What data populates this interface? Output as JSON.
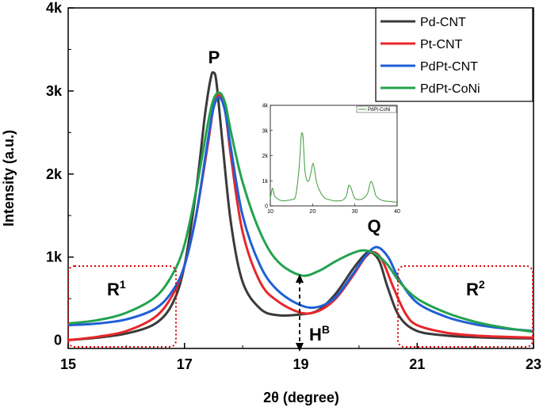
{
  "chart_data": {
    "type": "line",
    "title": "",
    "xlabel": "2θ (degree)",
    "ylabel": "Intensity (a.u.)",
    "xlim": [
      15,
      23
    ],
    "ylim": [
      -100,
      4000
    ],
    "x_ticks": [
      15,
      17,
      19,
      21,
      23
    ],
    "x_tick_labels": [
      "15",
      "17",
      "19",
      "21",
      "23"
    ],
    "y_ticks": [
      0,
      1000,
      2000,
      3000,
      4000
    ],
    "y_tick_labels": [
      "0",
      "1k",
      "2k",
      "3k",
      "4k"
    ],
    "legend_position": "top-right",
    "series": [
      {
        "name": "Pd-CNT",
        "color": "#3a3a3a",
        "x": [
          15.0,
          15.5,
          16.0,
          16.5,
          16.8,
          17.0,
          17.2,
          17.35,
          17.45,
          17.5,
          17.55,
          17.65,
          17.8,
          18.0,
          18.3,
          18.6,
          19.0,
          19.3,
          19.6,
          19.9,
          20.1,
          20.2,
          20.35,
          20.5,
          20.7,
          21.0,
          21.5,
          22.0,
          22.5,
          23.0
        ],
        "y": [
          0,
          30,
          80,
          200,
          450,
          900,
          1800,
          2700,
          3150,
          3220,
          3100,
          2400,
          1400,
          700,
          380,
          300,
          310,
          360,
          560,
          860,
          1030,
          1060,
          950,
          620,
          280,
          110,
          55,
          35,
          25,
          20
        ]
      },
      {
        "name": "Pt-CNT",
        "color": "#e8262a",
        "x": [
          15.0,
          15.5,
          16.0,
          16.5,
          16.8,
          17.0,
          17.2,
          17.4,
          17.5,
          17.6,
          17.7,
          17.8,
          18.0,
          18.3,
          18.6,
          19.0,
          19.3,
          19.6,
          19.9,
          20.1,
          20.25,
          20.4,
          20.6,
          20.8,
          21.0,
          21.5,
          22.0,
          22.5,
          23.0
        ],
        "y": [
          0,
          40,
          110,
          280,
          550,
          900,
          1500,
          2350,
          2800,
          2950,
          2750,
          2200,
          1300,
          700,
          470,
          330,
          350,
          500,
          780,
          990,
          1060,
          960,
          620,
          320,
          180,
          90,
          55,
          40,
          30
        ]
      },
      {
        "name": "PdPt-CNT",
        "color": "#1f5fd6",
        "x": [
          15.0,
          15.5,
          16.0,
          16.5,
          16.8,
          17.0,
          17.2,
          17.4,
          17.5,
          17.6,
          17.7,
          17.8,
          18.0,
          18.3,
          18.6,
          19.0,
          19.3,
          19.6,
          19.9,
          20.1,
          20.3,
          20.5,
          20.7,
          21.0,
          21.5,
          22.0,
          22.5,
          23.0
        ],
        "y": [
          180,
          200,
          250,
          380,
          600,
          900,
          1500,
          2400,
          2800,
          2920,
          2750,
          2300,
          1500,
          900,
          600,
          420,
          400,
          520,
          800,
          1000,
          1120,
          1000,
          720,
          450,
          280,
          190,
          140,
          110
        ]
      },
      {
        "name": "PdPt-CoNi",
        "color": "#23a24d",
        "x": [
          15.0,
          15.5,
          16.0,
          16.5,
          16.8,
          17.0,
          17.2,
          17.4,
          17.5,
          17.6,
          17.7,
          17.8,
          18.0,
          18.3,
          18.6,
          19.0,
          19.3,
          19.6,
          19.9,
          20.1,
          20.3,
          20.5,
          20.7,
          21.0,
          21.5,
          22.0,
          22.5,
          23.0
        ],
        "y": [
          200,
          240,
          330,
          520,
          800,
          1150,
          1800,
          2600,
          2900,
          2980,
          2850,
          2500,
          1900,
          1300,
          950,
          780,
          830,
          950,
          1050,
          1080,
          1030,
          900,
          700,
          500,
          330,
          220,
          150,
          100
        ]
      }
    ],
    "annotations": [
      "P",
      "Q",
      "R",
      "1",
      "R",
      "2",
      "H",
      "B"
    ],
    "inset": {
      "series_name": "PdPt-CoNi",
      "color": "#3a9a3a",
      "xlim": [
        10,
        40
      ],
      "ylim": [
        0,
        4000
      ],
      "x_ticks": [
        10,
        20,
        30,
        40
      ],
      "x_tick_labels": [
        "10",
        "20",
        "30",
        "40"
      ],
      "y_ticks": [
        0,
        1000,
        2000,
        3000,
        4000
      ],
      "y_tick_labels": [
        "0",
        "1k",
        "2k",
        "3k",
        "4k"
      ],
      "x": [
        10,
        10.5,
        11,
        12,
        13,
        14,
        15,
        16,
        16.8,
        17.3,
        17.6,
        17.8,
        18.2,
        18.7,
        19.2,
        19.7,
        20.1,
        20.5,
        21,
        22,
        23,
        24,
        25,
        26,
        27,
        28,
        28.5,
        29,
        29.5,
        30,
        31,
        32,
        33,
        33.6,
        34,
        34.5,
        35,
        36,
        37,
        38,
        39,
        40
      ],
      "y": [
        300,
        700,
        400,
        250,
        200,
        220,
        250,
        400,
        1500,
        2750,
        2880,
        2600,
        1400,
        1000,
        1050,
        1400,
        1700,
        1400,
        900,
        500,
        300,
        250,
        200,
        200,
        220,
        400,
        800,
        750,
        500,
        300,
        250,
        300,
        500,
        900,
        950,
        700,
        400,
        250,
        200,
        180,
        160,
        150
      ]
    }
  }
}
